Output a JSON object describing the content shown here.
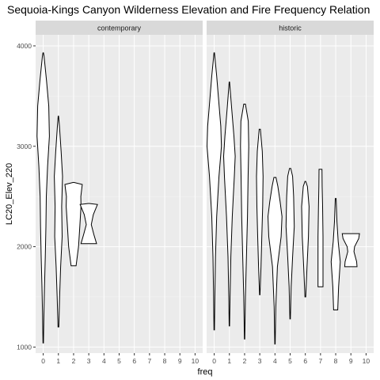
{
  "chart_data": {
    "type": "violin",
    "title": "Sequoia-Kings Canyon Wilderness Elevation and Fire Frequency Relation",
    "xlabel": "freq",
    "ylabel": "LC20_Elev_220",
    "xlim": [
      -0.5,
      10.5
    ],
    "ylim": [
      940,
      4110
    ],
    "x_ticks": [
      0,
      1,
      2,
      3,
      4,
      5,
      6,
      7,
      8,
      9,
      10
    ],
    "y_ticks": [
      1000,
      2000,
      3000,
      4000
    ],
    "grid": true,
    "legend": "none",
    "colors": {
      "panel_bg": "#ebebeb",
      "strip_bg": "#d9d9d9",
      "grid_major": "#ffffff",
      "outline": "#000000",
      "fill": "#ffffff"
    },
    "panels": [
      {
        "label": "contemporary",
        "violins": [
          {
            "freq": 0,
            "profile": [
              [
                1040,
                0.01
              ],
              [
                1300,
                0.03
              ],
              [
                1600,
                0.06
              ],
              [
                1900,
                0.1
              ],
              [
                2200,
                0.13
              ],
              [
                2500,
                0.15
              ],
              [
                2800,
                0.21
              ],
              [
                3100,
                0.3
              ],
              [
                3400,
                0.27
              ],
              [
                3650,
                0.16
              ],
              [
                3900,
                0.04
              ],
              [
                3930,
                0.01
              ]
            ]
          },
          {
            "freq": 1,
            "profile": [
              [
                1200,
                0.02
              ],
              [
                1500,
                0.06
              ],
              [
                1800,
                0.11
              ],
              [
                2100,
                0.18
              ],
              [
                2400,
                0.16
              ],
              [
                2700,
                0.2
              ],
              [
                2950,
                0.13
              ],
              [
                3200,
                0.05
              ],
              [
                3300,
                0.01
              ]
            ]
          },
          {
            "freq": 2,
            "profile": [
              [
                1810,
                0.12
              ],
              [
                2000,
                0.24
              ],
              [
                2200,
                0.3
              ],
              [
                2400,
                0.36
              ],
              [
                2500,
                0.35
              ],
              [
                2620,
                0.42
              ],
              [
                2640,
                0.01
              ]
            ]
          },
          {
            "freq": 3,
            "profile": [
              [
                2030,
                0.38
              ],
              [
                2120,
                0.25
              ],
              [
                2220,
                0.12
              ],
              [
                2320,
                0.22
              ],
              [
                2420,
                0.42
              ],
              [
                2430,
                0.01
              ]
            ]
          }
        ]
      },
      {
        "label": "historic",
        "violins": [
          {
            "freq": 0,
            "profile": [
              [
                1170,
                0.01
              ],
              [
                1500,
                0.03
              ],
              [
                1900,
                0.06
              ],
              [
                2300,
                0.12
              ],
              [
                2700,
                0.23
              ],
              [
                3000,
                0.35
              ],
              [
                3200,
                0.32
              ],
              [
                3400,
                0.24
              ],
              [
                3700,
                0.12
              ],
              [
                3930,
                0.01
              ]
            ]
          },
          {
            "freq": 1,
            "profile": [
              [
                1210,
                0.01
              ],
              [
                1500,
                0.03
              ],
              [
                1900,
                0.07
              ],
              [
                2300,
                0.14
              ],
              [
                2700,
                0.24
              ],
              [
                2900,
                0.28
              ],
              [
                3100,
                0.22
              ],
              [
                3400,
                0.1
              ],
              [
                3640,
                0.01
              ]
            ]
          },
          {
            "freq": 2,
            "profile": [
              [
                1080,
                0.01
              ],
              [
                1500,
                0.04
              ],
              [
                1900,
                0.09
              ],
              [
                2300,
                0.14
              ],
              [
                2700,
                0.17
              ],
              [
                3000,
                0.2
              ],
              [
                3250,
                0.18
              ],
              [
                3420,
                0.04
              ]
            ]
          },
          {
            "freq": 3,
            "profile": [
              [
                1520,
                0.01
              ],
              [
                1800,
                0.06
              ],
              [
                2100,
                0.1
              ],
              [
                2400,
                0.14
              ],
              [
                2700,
                0.16
              ],
              [
                2950,
                0.12
              ],
              [
                3170,
                0.03
              ]
            ]
          },
          {
            "freq": 4,
            "profile": [
              [
                1030,
                0.01
              ],
              [
                1400,
                0.04
              ],
              [
                1800,
                0.12
              ],
              [
                2100,
                0.3
              ],
              [
                2300,
                0.34
              ],
              [
                2450,
                0.25
              ],
              [
                2600,
                0.14
              ],
              [
                2690,
                0.05
              ]
            ]
          },
          {
            "freq": 5,
            "profile": [
              [
                1280,
                0.01
              ],
              [
                1600,
                0.05
              ],
              [
                1900,
                0.12
              ],
              [
                2200,
                0.2
              ],
              [
                2500,
                0.17
              ],
              [
                2700,
                0.12
              ],
              [
                2780,
                0.03
              ]
            ]
          },
          {
            "freq": 6,
            "profile": [
              [
                1500,
                0.02
              ],
              [
                1800,
                0.08
              ],
              [
                2100,
                0.15
              ],
              [
                2400,
                0.18
              ],
              [
                2600,
                0.1
              ],
              [
                2650,
                0.02
              ]
            ]
          },
          {
            "freq": 7,
            "profile": [
              [
                1600,
                0.12
              ],
              [
                1800,
                0.12
              ],
              [
                2100,
                0.12
              ],
              [
                2400,
                0.1
              ],
              [
                2600,
                0.08
              ],
              [
                2770,
                0.07
              ]
            ]
          },
          {
            "freq": 8,
            "profile": [
              [
                1370,
                0.1
              ],
              [
                1600,
                0.14
              ],
              [
                1850,
                0.22
              ],
              [
                2050,
                0.12
              ],
              [
                2250,
                0.06
              ],
              [
                2480,
                0.02
              ]
            ]
          },
          {
            "freq": 9,
            "profile": [
              [
                1800,
                0.3
              ],
              [
                1850,
                0.28
              ],
              [
                1950,
                0.15
              ],
              [
                2000,
                0.18
              ],
              [
                2080,
                0.38
              ],
              [
                2130,
                0.42
              ]
            ]
          }
        ]
      }
    ]
  }
}
